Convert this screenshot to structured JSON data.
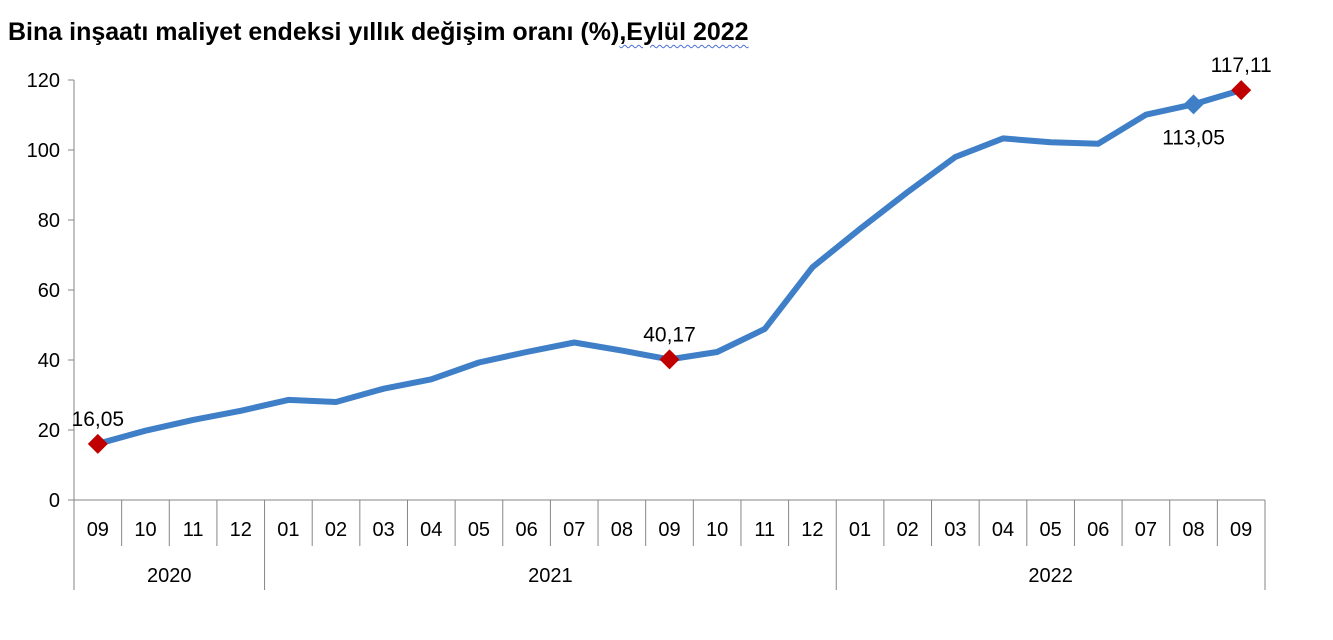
{
  "chart_data": {
    "type": "line",
    "title_main": "Bina inşaatı maliyet endeksi yıllık değişim oranı (%)",
    "title_suffix": ",Eylül 2022",
    "xlabel": "",
    "ylabel": "",
    "ylim": [
      0,
      120
    ],
    "yticks": [
      "0",
      "20",
      "40",
      "60",
      "80",
      "100",
      "120"
    ],
    "categories": [
      "09",
      "10",
      "11",
      "12",
      "01",
      "02",
      "03",
      "04",
      "05",
      "06",
      "07",
      "08",
      "09",
      "10",
      "11",
      "12",
      "01",
      "02",
      "03",
      "04",
      "05",
      "06",
      "07",
      "08",
      "09"
    ],
    "years": [
      {
        "label": "2020",
        "months": 4
      },
      {
        "label": "2021",
        "months": 12
      },
      {
        "label": "2022",
        "months": 9
      }
    ],
    "series": [
      {
        "values": [
          16.05,
          19.8,
          22.9,
          25.5,
          28.6,
          28.0,
          31.8,
          34.5,
          39.3,
          42.3,
          45.0,
          42.7,
          40.17,
          42.3,
          48.9,
          66.5,
          77.5,
          88.0,
          98.0,
          103.3,
          102.2,
          101.8,
          110.1,
          113.05,
          117.11
        ],
        "color": "#3f7fc7"
      }
    ],
    "annotations": [
      {
        "index": 0,
        "label": "16,05",
        "marker": "diamond",
        "color": "#c00000",
        "pos": "above"
      },
      {
        "index": 12,
        "label": "40,17",
        "marker": "diamond",
        "color": "#c00000",
        "pos": "above"
      },
      {
        "index": 23,
        "label": "113,05",
        "marker": "diamond",
        "color": "#3f7fc7",
        "pos": "below"
      },
      {
        "index": 24,
        "label": "117,11",
        "marker": "diamond",
        "color": "#c00000",
        "pos": "above"
      }
    ],
    "grid": false,
    "legend": "none"
  }
}
